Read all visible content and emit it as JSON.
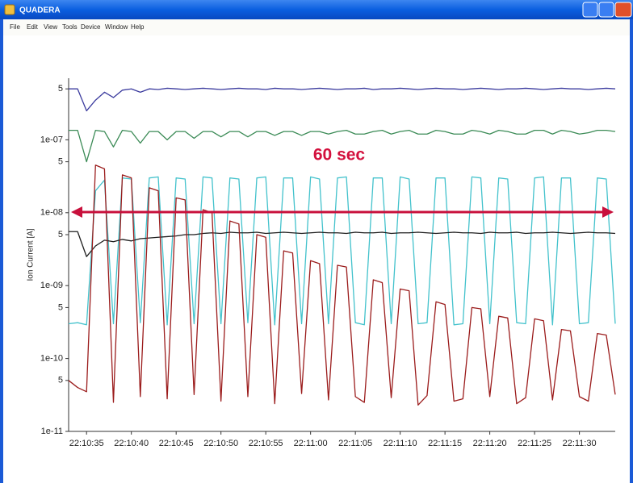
{
  "window": {
    "title": "QUADERA",
    "menu": [
      "File",
      "Edit",
      "View",
      "Tools",
      "Device",
      "Window",
      "Help"
    ]
  },
  "chart_data": {
    "type": "line",
    "y_label": "Ion Current [A]",
    "annotation": "60 sec",
    "yscale": "log",
    "grid": false,
    "x": [
      "22:10:33",
      "22:10:34",
      "22:10:35",
      "22:10:36",
      "22:10:37",
      "22:10:38",
      "22:10:39",
      "22:10:40",
      "22:10:41",
      "22:10:42",
      "22:10:43",
      "22:10:44",
      "22:10:45",
      "22:10:46",
      "22:10:47",
      "22:10:48",
      "22:10:49",
      "22:10:50",
      "22:10:51",
      "22:10:52",
      "22:10:53",
      "22:10:54",
      "22:10:55",
      "22:10:56",
      "22:10:57",
      "22:10:58",
      "22:10:59",
      "22:11:00",
      "22:11:01",
      "22:11:02",
      "22:11:03",
      "22:11:04",
      "22:11:05",
      "22:11:06",
      "22:11:07",
      "22:11:08",
      "22:11:09",
      "22:11:10",
      "22:11:11",
      "22:11:12",
      "22:11:13",
      "22:11:14",
      "22:11:15",
      "22:11:16",
      "22:11:17",
      "22:11:18",
      "22:11:19",
      "22:11:20",
      "22:11:21",
      "22:11:22",
      "22:11:23",
      "22:11:24",
      "22:11:25",
      "22:11:26",
      "22:11:27",
      "22:11:28",
      "22:11:29",
      "22:11:30",
      "22:11:31",
      "22:11:32",
      "22:11:33",
      "22:11:34"
    ],
    "xlim": [
      "22:10:33",
      "22:11:34"
    ],
    "xticks": [
      "22:10:35",
      "22:10:40",
      "22:10:45",
      "22:10:50",
      "22:10:55",
      "22:11:00",
      "22:11:05",
      "22:11:10",
      "22:11:15",
      "22:11:20",
      "22:11:25",
      "22:11:30"
    ],
    "ylim": [
      1e-11,
      7e-07
    ],
    "yticks": [
      1e-11,
      {
        "value": 5e-11,
        "label": "5"
      },
      1e-10,
      {
        "value": 5e-10,
        "label": "5"
      },
      {
        "value": 1e-09,
        "label": "1e-09"
      },
      {
        "value": 5e-09,
        "label": "5"
      },
      {
        "value": 1e-08,
        "label": "1e-08"
      },
      {
        "value": 5e-08,
        "label": "5"
      },
      {
        "value": 1e-07,
        "label": "1e-07"
      },
      {
        "value": 5e-07,
        "label": "5"
      }
    ],
    "series": [
      {
        "color": "#3b3b9e",
        "values": [
          5e-07,
          5e-07,
          2.5e-07,
          3.5e-07,
          4.5e-07,
          3.8e-07,
          4.8e-07,
          5e-07,
          4.5e-07,
          5e-07,
          4.9e-07,
          5.1e-07,
          5e-07,
          4.9e-07,
          5e-07,
          5.1e-07,
          5e-07,
          4.9e-07,
          5e-07,
          5.1e-07,
          5e-07,
          5e-07,
          4.9e-07,
          5.1e-07,
          5e-07,
          5e-07,
          4.9e-07,
          5e-07,
          5.1e-07,
          5e-07,
          4.9e-07,
          5e-07,
          5e-07,
          5.1e-07,
          4.9e-07,
          5e-07,
          5e-07,
          5.1e-07,
          5e-07,
          4.9e-07,
          5e-07,
          5.1e-07,
          5e-07,
          5e-07,
          4.9e-07,
          5e-07,
          5.1e-07,
          5e-07,
          4.9e-07,
          5e-07,
          5e-07,
          5.1e-07,
          5e-07,
          4.9e-07,
          5e-07,
          5.1e-07,
          5e-07,
          5e-07,
          4.9e-07,
          5e-07,
          5.1e-07,
          5e-07
        ]
      },
      {
        "color": "#3a8a55",
        "values": [
          1.35e-07,
          1.35e-07,
          5e-08,
          1.35e-07,
          1.3e-07,
          8e-08,
          1.35e-07,
          1.3e-07,
          9e-08,
          1.3e-07,
          1.3e-07,
          1e-07,
          1.3e-07,
          1.3e-07,
          1.05e-07,
          1.3e-07,
          1.3e-07,
          1.1e-07,
          1.3e-07,
          1.3e-07,
          1.1e-07,
          1.3e-07,
          1.3e-07,
          1.15e-07,
          1.3e-07,
          1.3e-07,
          1.15e-07,
          1.3e-07,
          1.3e-07,
          1.2e-07,
          1.3e-07,
          1.35e-07,
          1.2e-07,
          1.2e-07,
          1.3e-07,
          1.35e-07,
          1.2e-07,
          1.3e-07,
          1.35e-07,
          1.2e-07,
          1.2e-07,
          1.35e-07,
          1.3e-07,
          1.2e-07,
          1.2e-07,
          1.35e-07,
          1.3e-07,
          1.2e-07,
          1.35e-07,
          1.3e-07,
          1.2e-07,
          1.2e-07,
          1.35e-07,
          1.35e-07,
          1.2e-07,
          1.35e-07,
          1.3e-07,
          1.2e-07,
          1.25e-07,
          1.35e-07,
          1.35e-07,
          1.3e-07
        ]
      },
      {
        "color": "#43c2cc",
        "values": [
          3e-10,
          3.1e-10,
          2.9e-10,
          2e-08,
          2.8e-08,
          3e-10,
          3e-08,
          2.9e-08,
          3.1e-10,
          3e-08,
          3.1e-08,
          2.9e-10,
          3e-08,
          2.9e-08,
          3e-10,
          3.1e-08,
          3e-08,
          3e-10,
          3e-08,
          2.9e-08,
          3.1e-10,
          3e-08,
          3.1e-08,
          2.9e-10,
          3e-08,
          3e-08,
          3e-10,
          3.1e-08,
          2.9e-08,
          3e-10,
          3e-08,
          3.1e-08,
          3.1e-10,
          2.9e-10,
          3e-08,
          3e-08,
          3e-10,
          3.1e-08,
          2.9e-08,
          3e-10,
          3.1e-10,
          3e-08,
          3e-08,
          2.9e-10,
          3e-10,
          3.1e-08,
          3e-08,
          3e-10,
          3e-08,
          2.9e-08,
          3.1e-10,
          3e-10,
          3e-08,
          3.1e-08,
          2.9e-10,
          3e-08,
          3e-08,
          3e-10,
          3.1e-10,
          3e-08,
          2.9e-08,
          3e-10
        ]
      },
      {
        "color": "#1e1e1e",
        "values": [
          5.5e-09,
          5.5e-09,
          2.5e-09,
          3.5e-09,
          4.2e-09,
          4e-09,
          4.3e-09,
          4.1e-09,
          4.4e-09,
          4.5e-09,
          4.6e-09,
          4.7e-09,
          4.8e-09,
          5e-09,
          5e-09,
          5.2e-09,
          5.3e-09,
          5.2e-09,
          5.4e-09,
          5.3e-09,
          5.3e-09,
          5.4e-09,
          5.2e-09,
          5.3e-09,
          5.4e-09,
          5.3e-09,
          5.2e-09,
          5.3e-09,
          5.4e-09,
          5.3e-09,
          5.3e-09,
          5.2e-09,
          5.4e-09,
          5.3e-09,
          5.3e-09,
          5.4e-09,
          5.2e-09,
          5.3e-09,
          5.3e-09,
          5.4e-09,
          5.3e-09,
          5.2e-09,
          5.3e-09,
          5.4e-09,
          5.3e-09,
          5.3e-09,
          5.2e-09,
          5.4e-09,
          5.3e-09,
          5.3e-09,
          5.4e-09,
          5.2e-09,
          5.3e-09,
          5.3e-09,
          5.4e-09,
          5.3e-09,
          5.2e-09,
          5.3e-09,
          5.4e-09,
          5.3e-09,
          5.3e-09,
          5.2e-09
        ]
      },
      {
        "color": "#9b1c1c",
        "values": [
          5e-11,
          4e-11,
          3.5e-11,
          4.5e-08,
          4e-08,
          2.5e-11,
          3.3e-08,
          3e-08,
          3e-11,
          2.2e-08,
          2e-08,
          2.8e-11,
          1.6e-08,
          1.5e-08,
          3.2e-11,
          1.1e-08,
          1e-08,
          2.6e-11,
          7.7e-09,
          7e-09,
          3e-11,
          5e-09,
          4.6e-09,
          2.4e-11,
          3e-09,
          2.8e-09,
          3.3e-11,
          2.2e-09,
          2e-09,
          2.7e-11,
          1.9e-09,
          1.8e-09,
          3e-11,
          2.5e-11,
          1.2e-09,
          1.1e-09,
          2.9e-11,
          9e-10,
          8.5e-10,
          2.3e-11,
          3.1e-11,
          6e-10,
          5.5e-10,
          2.6e-11,
          2.8e-11,
          5e-10,
          4.8e-10,
          3e-11,
          3.8e-10,
          3.6e-10,
          2.4e-11,
          2.9e-11,
          3.5e-10,
          3.3e-10,
          2.7e-11,
          2.5e-10,
          2.4e-10,
          3e-11,
          2.6e-11,
          2.2e-10,
          2.1e-10,
          3.2e-11
        ]
      }
    ]
  }
}
